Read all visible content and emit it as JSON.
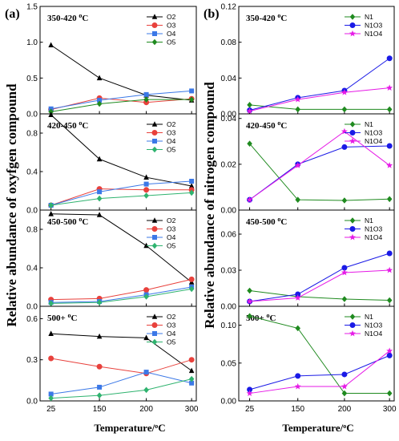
{
  "figure": {
    "panel_labels": [
      "(a)",
      "(b)"
    ],
    "left_ylabel": "Relative abundance of oxyfgen compound",
    "right_ylabel": "Relative abundance of nitrogen compound",
    "xlabel": "Temperature/°C"
  },
  "chart_data": [
    {
      "type": "line",
      "column": "a",
      "title": "350-420 °C",
      "categories": [
        "25",
        "150",
        "200",
        "300"
      ],
      "ylim": [
        0,
        1.5
      ],
      "yticks": [
        0.0,
        0.5,
        1.0,
        1.5
      ],
      "ytick_labels": [
        "0.0",
        "0.5",
        "1.0",
        "1.5"
      ],
      "series": [
        {
          "name": "O2",
          "color": "#000000",
          "marker": "triangle",
          "values": [
            0.96,
            0.5,
            0.26,
            0.19
          ]
        },
        {
          "name": "O3",
          "color": "#e8413c",
          "marker": "circle",
          "values": [
            0.06,
            0.22,
            0.16,
            0.21
          ]
        },
        {
          "name": "O4",
          "color": "#3b78e7",
          "marker": "square",
          "values": [
            0.07,
            0.19,
            0.27,
            0.32
          ]
        },
        {
          "name": "O5",
          "color": "#1f8a1f",
          "marker": "diamond",
          "values": [
            0.03,
            0.14,
            0.2,
            0.2
          ]
        }
      ]
    },
    {
      "type": "line",
      "column": "a",
      "title": "420-450 °C",
      "categories": [
        "25",
        "150",
        "200",
        "300"
      ],
      "ylim": [
        0,
        1.0
      ],
      "yticks": [
        0.0,
        0.4,
        0.8
      ],
      "ytick_labels": [
        "0.0",
        "0.4",
        "0.8"
      ],
      "series": [
        {
          "name": "O2",
          "color": "#000000",
          "marker": "triangle",
          "values": [
            0.99,
            0.53,
            0.34,
            0.25
          ]
        },
        {
          "name": "O3",
          "color": "#e8413c",
          "marker": "circle",
          "values": [
            0.05,
            0.22,
            0.21,
            0.21
          ]
        },
        {
          "name": "O4",
          "color": "#3b78e7",
          "marker": "square",
          "values": [
            0.05,
            0.19,
            0.27,
            0.3
          ]
        },
        {
          "name": "O5",
          "color": "#2fb36f",
          "marker": "diamond",
          "values": [
            0.05,
            0.12,
            0.15,
            0.18
          ]
        }
      ]
    },
    {
      "type": "line",
      "column": "a",
      "title": "450-500 °C",
      "categories": [
        "25",
        "150",
        "200",
        "300"
      ],
      "ylim": [
        0,
        1.0
      ],
      "yticks": [
        0.0,
        0.4,
        0.8
      ],
      "ytick_labels": [
        "0.0",
        "0.4",
        "0.8"
      ],
      "series": [
        {
          "name": "O2",
          "color": "#000000",
          "marker": "triangle",
          "values": [
            0.96,
            0.95,
            0.63,
            0.25
          ]
        },
        {
          "name": "O3",
          "color": "#e8413c",
          "marker": "circle",
          "values": [
            0.07,
            0.08,
            0.17,
            0.28
          ]
        },
        {
          "name": "O4",
          "color": "#3b78e7",
          "marker": "square",
          "values": [
            0.04,
            0.05,
            0.12,
            0.2
          ]
        },
        {
          "name": "O5",
          "color": "#2fb36f",
          "marker": "diamond",
          "values": [
            0.03,
            0.04,
            0.1,
            0.18
          ]
        }
      ]
    },
    {
      "type": "line",
      "column": "a",
      "title": "500+ °C",
      "categories": [
        "25",
        "150",
        "200",
        "300"
      ],
      "ylim": [
        0,
        0.69
      ],
      "yticks": [
        0.0,
        0.3,
        0.6
      ],
      "ytick_labels": [
        "0.0",
        "0.3",
        "0.6"
      ],
      "series": [
        {
          "name": "O2",
          "color": "#000000",
          "marker": "triangle",
          "values": [
            0.49,
            0.47,
            0.46,
            0.22
          ]
        },
        {
          "name": "O3",
          "color": "#e8413c",
          "marker": "circle",
          "values": [
            0.31,
            0.25,
            0.2,
            0.3
          ]
        },
        {
          "name": "O4",
          "color": "#3b78e7",
          "marker": "square",
          "values": [
            0.05,
            0.1,
            0.21,
            0.13
          ]
        },
        {
          "name": "O5",
          "color": "#2fb36f",
          "marker": "diamond",
          "values": [
            0.02,
            0.04,
            0.08,
            0.16
          ]
        }
      ]
    },
    {
      "type": "line",
      "column": "b",
      "title": "350-420 °C",
      "categories": [
        "25",
        "150",
        "200",
        "300"
      ],
      "ylim": [
        0,
        0.12
      ],
      "yticks": [
        0.0,
        0.04,
        0.08,
        0.12
      ],
      "ytick_labels": [
        "0.00",
        "0.04",
        "0.08",
        "0.12"
      ],
      "series": [
        {
          "name": "N1",
          "color": "#1f8a1f",
          "marker": "diamond",
          "values": [
            0.01,
            0.005,
            0.005,
            0.005
          ]
        },
        {
          "name": "N1O3",
          "color": "#1a1ae6",
          "marker": "circle",
          "values": [
            0.004,
            0.018,
            0.026,
            0.062
          ]
        },
        {
          "name": "N1O4",
          "color": "#e61ae6",
          "marker": "star",
          "values": [
            0.003,
            0.016,
            0.024,
            0.029
          ]
        }
      ]
    },
    {
      "type": "line",
      "column": "b",
      "title": "420-450 °C",
      "categories": [
        "25",
        "150",
        "200",
        "300"
      ],
      "ylim": [
        0,
        0.042
      ],
      "yticks": [
        0.0,
        0.02,
        0.04
      ],
      "ytick_labels": [
        "0.00",
        "0.02",
        "0.04"
      ],
      "series": [
        {
          "name": "N1",
          "color": "#1f8a1f",
          "marker": "diamond",
          "values": [
            0.029,
            0.0045,
            0.0042,
            0.0048
          ]
        },
        {
          "name": "N1O3",
          "color": "#1a1ae6",
          "marker": "circle",
          "values": [
            0.0045,
            0.02,
            0.0275,
            0.028
          ]
        },
        {
          "name": "N1O4",
          "color": "#e61ae6",
          "marker": "star",
          "values": [
            0.0045,
            0.0195,
            0.0343,
            0.0195
          ]
        }
      ]
    },
    {
      "type": "line",
      "column": "b",
      "title": "450-500 °C",
      "categories": [
        "25",
        "150",
        "200",
        "300"
      ],
      "ylim": [
        0,
        0.08
      ],
      "yticks": [
        0.0,
        0.03,
        0.06
      ],
      "ytick_labels": [
        "0.00",
        "0.03",
        "0.06"
      ],
      "series": [
        {
          "name": "N1",
          "color": "#1f8a1f",
          "marker": "diamond",
          "values": [
            0.013,
            0.008,
            0.006,
            0.005
          ]
        },
        {
          "name": "N1O3",
          "color": "#1a1ae6",
          "marker": "circle",
          "values": [
            0.004,
            0.01,
            0.032,
            0.044
          ]
        },
        {
          "name": "N1O4",
          "color": "#e61ae6",
          "marker": "star",
          "values": [
            0.004,
            0.007,
            0.028,
            0.03
          ]
        }
      ]
    },
    {
      "type": "line",
      "column": "b",
      "title": "500+ °C",
      "categories": [
        "25",
        "150",
        "200",
        "300"
      ],
      "ylim": [
        0,
        0.125
      ],
      "yticks": [
        0.0,
        0.05,
        0.1
      ],
      "ytick_labels": [
        "0.00",
        "0.05",
        "0.10"
      ],
      "series": [
        {
          "name": "N1",
          "color": "#1f8a1f",
          "marker": "diamond",
          "values": [
            0.112,
            0.096,
            0.01,
            0.01
          ]
        },
        {
          "name": "N1O3",
          "color": "#1a1ae6",
          "marker": "circle",
          "values": [
            0.015,
            0.033,
            0.035,
            0.06
          ]
        },
        {
          "name": "N1O4",
          "color": "#e61ae6",
          "marker": "star",
          "values": [
            0.01,
            0.019,
            0.019,
            0.066
          ]
        }
      ]
    }
  ]
}
